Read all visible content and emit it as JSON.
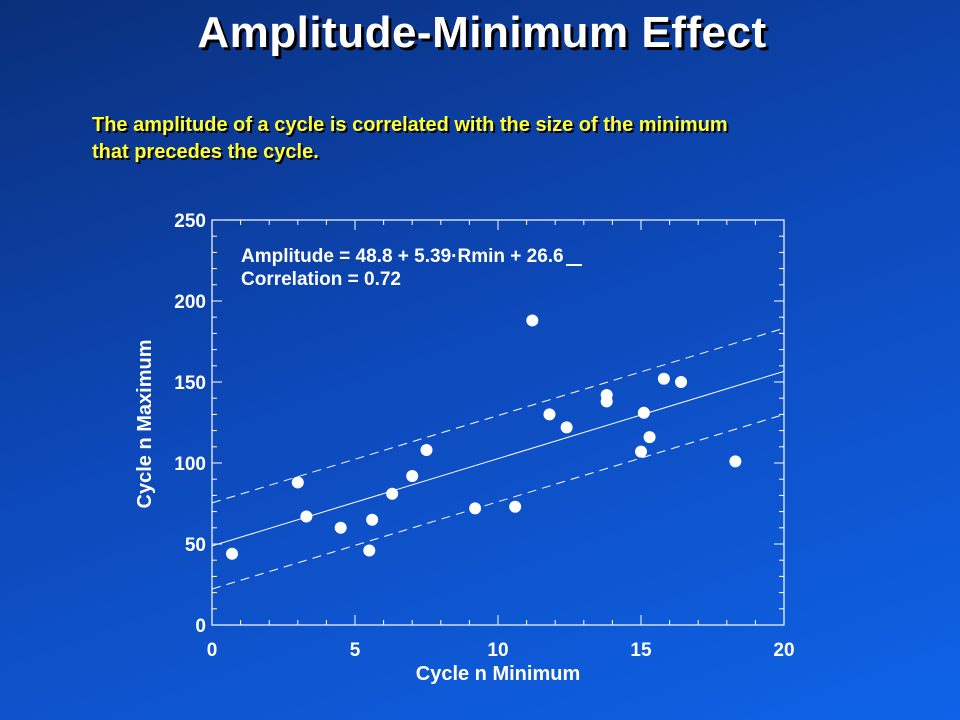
{
  "slide": {
    "title": "Amplitude-Minimum Effect",
    "subtitle_line1": "The amplitude of a cycle is correlated with the size of the minimum",
    "subtitle_line2": "that precedes the cycle."
  },
  "colors": {
    "title": "#ffffff",
    "subtitle": "#ffff33",
    "plot": "#ffffff",
    "background_top": "#0a2f7a",
    "background_bottom": "#0f63e8"
  },
  "chart_data": {
    "type": "scatter",
    "xlabel": "Cycle n Minimum",
    "ylabel": "Cycle n Maximum",
    "xlim": [
      0,
      20
    ],
    "ylim": [
      0,
      250
    ],
    "xticks": [
      0,
      5,
      10,
      15,
      20
    ],
    "yticks": [
      0,
      50,
      100,
      150,
      200,
      250
    ],
    "annotation_line1": "Amplitude = 48.8 + 5.39·Rmin + 26.6",
    "annotation_line2": "Correlation =  0.72",
    "fit": {
      "intercept": 48.8,
      "slope": 5.39,
      "band": 26.6
    },
    "points": [
      {
        "x": 0.7,
        "y": 44
      },
      {
        "x": 3.0,
        "y": 88
      },
      {
        "x": 3.3,
        "y": 67
      },
      {
        "x": 4.5,
        "y": 60
      },
      {
        "x": 5.5,
        "y": 46
      },
      {
        "x": 5.6,
        "y": 65
      },
      {
        "x": 6.3,
        "y": 81
      },
      {
        "x": 7.0,
        "y": 92
      },
      {
        "x": 7.5,
        "y": 108
      },
      {
        "x": 9.2,
        "y": 72
      },
      {
        "x": 10.6,
        "y": 73
      },
      {
        "x": 11.2,
        "y": 188
      },
      {
        "x": 11.8,
        "y": 130
      },
      {
        "x": 12.4,
        "y": 122
      },
      {
        "x": 13.8,
        "y": 138
      },
      {
        "x": 13.8,
        "y": 142
      },
      {
        "x": 15.0,
        "y": 107
      },
      {
        "x": 15.1,
        "y": 131
      },
      {
        "x": 15.3,
        "y": 116
      },
      {
        "x": 15.8,
        "y": 152
      },
      {
        "x": 16.4,
        "y": 150
      },
      {
        "x": 18.3,
        "y": 101
      }
    ]
  }
}
